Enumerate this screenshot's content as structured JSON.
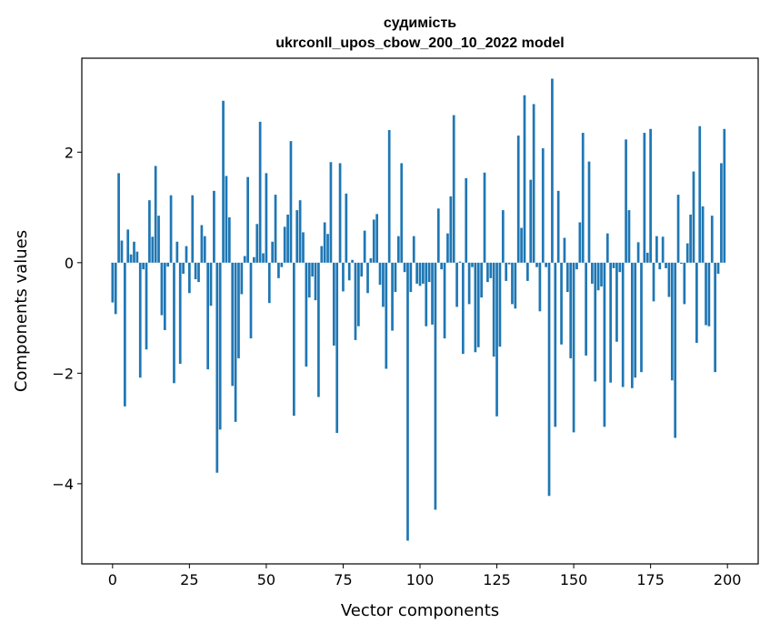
{
  "chart_data": {
    "type": "bar",
    "title": "судимість",
    "subtitle": "ukrconll_upos_cbow_200_10_2022 model",
    "xlabel": "Vector components",
    "ylabel": "Components values",
    "xlim": [
      -10,
      210
    ],
    "ylim": [
      -5.45,
      3.7
    ],
    "xticks": [
      0,
      25,
      50,
      75,
      100,
      125,
      150,
      175,
      200
    ],
    "xtick_labels": [
      "0",
      "25",
      "50",
      "75",
      "100",
      "125",
      "150",
      "175",
      "200"
    ],
    "yticks": [
      -4,
      -2,
      0,
      2
    ],
    "ytick_labels": [
      "−4",
      "−2",
      "0",
      "2"
    ],
    "bar_color": "#1f77b4",
    "values": [
      -0.72,
      -0.93,
      1.62,
      0.4,
      -2.6,
      0.6,
      0.15,
      0.38,
      0.2,
      -2.08,
      -0.12,
      -1.57,
      1.13,
      0.47,
      1.75,
      0.85,
      -0.95,
      -1.22,
      -0.07,
      1.22,
      -2.18,
      0.38,
      -1.83,
      -0.2,
      0.3,
      -0.55,
      1.22,
      -0.3,
      -0.35,
      0.68,
      0.48,
      -1.93,
      -0.78,
      1.3,
      -3.8,
      -3.02,
      2.93,
      1.57,
      0.82,
      -2.23,
      -2.88,
      -1.73,
      -0.57,
      0.12,
      1.55,
      -1.37,
      0.1,
      0.7,
      2.55,
      0.17,
      1.62,
      -0.73,
      0.38,
      1.23,
      -0.28,
      -0.08,
      0.65,
      0.87,
      2.2,
      -2.77,
      0.95,
      1.13,
      0.55,
      -1.88,
      -0.63,
      -0.25,
      -0.68,
      -2.43,
      0.3,
      0.73,
      0.52,
      1.82,
      -1.5,
      -3.08,
      1.8,
      -0.52,
      1.25,
      -0.32,
      0.05,
      -1.4,
      -1.15,
      -0.25,
      0.58,
      -0.55,
      0.08,
      0.78,
      0.88,
      -0.4,
      -0.8,
      -1.92,
      2.4,
      -1.23,
      -0.53,
      0.48,
      1.8,
      -0.17,
      -5.03,
      -0.53,
      0.48,
      -0.38,
      -0.42,
      -0.38,
      -1.15,
      -0.35,
      -1.12,
      -4.47,
      0.98,
      -0.12,
      -1.37,
      0.53,
      1.2,
      2.67,
      -0.8,
      0.02,
      -1.65,
      1.53,
      -0.75,
      -0.08,
      -1.62,
      -1.53,
      -0.63,
      1.63,
      -0.35,
      -0.28,
      -1.7,
      -2.78,
      -1.52,
      0.95,
      -0.33,
      -0.03,
      -0.75,
      -0.83,
      2.3,
      0.63,
      3.03,
      -0.33,
      1.5,
      2.87,
      -0.08,
      -0.88,
      2.07,
      -0.08,
      -4.22,
      3.33,
      -2.97,
      1.3,
      -1.48,
      0.45,
      -0.53,
      -1.73,
      -3.07,
      -0.12,
      0.73,
      2.35,
      -1.68,
      1.83,
      -0.38,
      -2.15,
      -0.5,
      -0.43,
      -2.97,
      0.53,
      -2.17,
      -0.1,
      -1.43,
      -0.17,
      -2.25,
      2.23,
      0.95,
      -2.27,
      -2.08,
      0.37,
      -1.98,
      2.35,
      0.18,
      2.42,
      -0.7,
      0.48,
      -0.12,
      0.47,
      -0.1,
      -0.62,
      -2.13,
      -3.17,
      1.23,
      -0.02,
      -0.75,
      0.35,
      0.87,
      1.65,
      -1.45,
      2.47,
      1.02,
      -1.13,
      -1.15,
      0.85,
      -1.98,
      -0.2,
      1.8,
      2.42
    ]
  }
}
